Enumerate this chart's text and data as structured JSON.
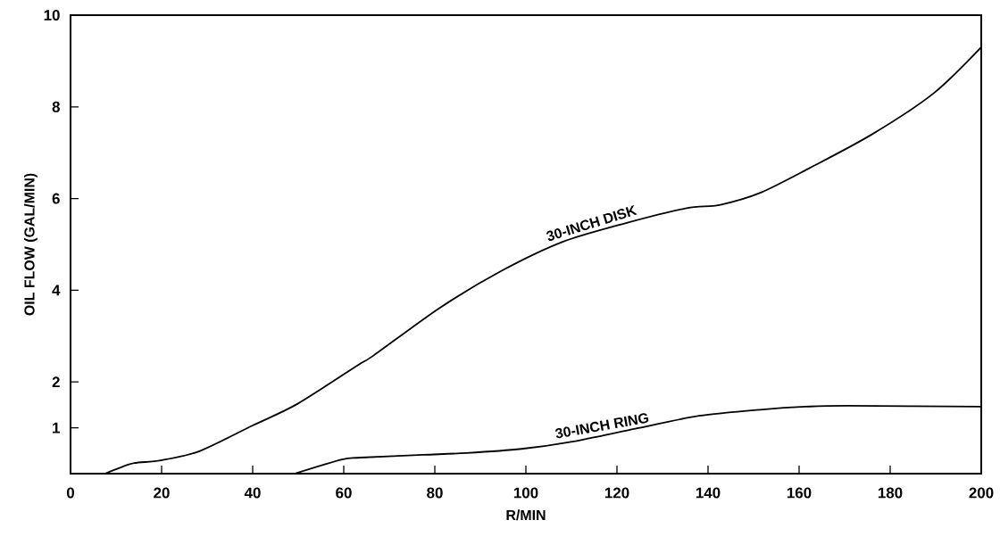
{
  "chart_data": {
    "type": "line",
    "xlabel": "R/MIN",
    "ylabel": "OIL FLOW (GAL/MIN)",
    "xlim": [
      0,
      200
    ],
    "ylim": [
      0,
      10
    ],
    "xticks": [
      0,
      20,
      40,
      60,
      80,
      100,
      120,
      140,
      160,
      180,
      200
    ],
    "yticks": [
      1,
      2,
      4,
      6,
      8,
      10
    ],
    "grid": false,
    "legend": false,
    "marker": "none",
    "line_style": "solid",
    "series": [
      {
        "name": "30-INCH DISK",
        "color": "#000000",
        "x": [
          7.6,
          10.6,
          14,
          19.8,
          28.3,
          40,
          49.8,
          63,
          66.6,
          81,
          94.6,
          108.2,
          121.8,
          135.3,
          142.5,
          151.6,
          162.4,
          176,
          189.6,
          200
        ],
        "values": [
          0,
          0.12,
          0.23,
          0.29,
          0.49,
          1.05,
          1.52,
          2.36,
          2.58,
          3.61,
          4.42,
          5.06,
          5.46,
          5.79,
          5.86,
          6.13,
          6.67,
          7.4,
          8.3,
          9.3
        ]
      },
      {
        "name": "30-INCH RING",
        "color": "#000000",
        "x": [
          49.2,
          59.6,
          63.7,
          77.4,
          86.9,
          99,
          110.2,
          124,
          138,
          152,
          161.4,
          170.6,
          200
        ],
        "values": [
          0,
          0.31,
          0.35,
          0.41,
          0.45,
          0.54,
          0.7,
          0.98,
          1.26,
          1.4,
          1.46,
          1.48,
          1.46
        ]
      }
    ]
  }
}
